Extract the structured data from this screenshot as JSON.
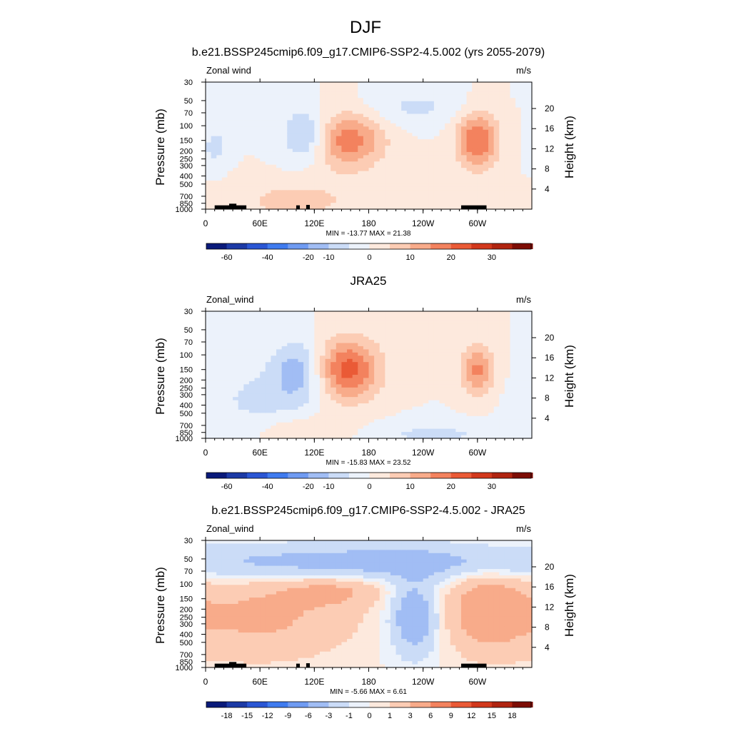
{
  "figure_title": "DJF",
  "colors": {
    "main_palette": [
      "#0a1a7a",
      "#1c3aa6",
      "#2a56d4",
      "#3f7bef",
      "#6f9bf2",
      "#a1bdf4",
      "#cbdcf7",
      "#ecf2fb",
      "#fde9dd",
      "#fcccb4",
      "#f8ab8a",
      "#f3825e",
      "#ea5a36",
      "#d2381c",
      "#b02410",
      "#7d0d05"
    ],
    "diff_palette": [
      "#0a1a7a",
      "#1c3aa6",
      "#2a56d4",
      "#3f7bef",
      "#6f9bf2",
      "#a1bdf4",
      "#cbdcf7",
      "#ecf2fb",
      "#fde9dd",
      "#fcccb4",
      "#f8ab8a",
      "#f3825e",
      "#ea5a36",
      "#d2381c",
      "#b02410",
      "#7d0d05"
    ],
    "topography": "#000000"
  },
  "chart_data": [
    {
      "type": "heatmap",
      "title": "b.e21.BSSP245cmip6.f09_g17.CMIP6-SSP2-4.5.002 (yrs 2055-2079)",
      "left_label": "Zonal wind",
      "units": "m/s",
      "ylabel": "Pressure (mb)",
      "y2label": "Height (km)",
      "x_ticks": [
        "0",
        "60E",
        "120E",
        "180",
        "120W",
        "60W"
      ],
      "y_ticks": [
        "30",
        "50",
        "70",
        "100",
        "150",
        "200",
        "250",
        "300",
        "400",
        "500",
        "700",
        "850",
        "1000"
      ],
      "y2_ticks": [
        "20",
        "16",
        "12",
        "8",
        "4"
      ],
      "stats": "MIN = -13.77  MAX =  21.38",
      "min": -13.77,
      "max": 21.38,
      "colorbar_labels": [
        "-60",
        "-40",
        "-20",
        "-10",
        "0",
        "10",
        "20",
        "30"
      ],
      "colorbar_levels": [
        -70,
        -60,
        -50,
        -40,
        -30,
        -20,
        -10,
        -5,
        0,
        5,
        10,
        15,
        20,
        25,
        30,
        35,
        40
      ],
      "field": [
        {
          "lon": 157,
          "p": 150,
          "amp": 18,
          "slon": 28,
          "sp": 0.55
        },
        {
          "lon": 300,
          "p": 150,
          "amp": 20,
          "slon": 16,
          "sp": 0.55
        },
        {
          "lon": 110,
          "p": 130,
          "amp": -13,
          "slon": 18,
          "sp": 0.5
        },
        {
          "lon": 10,
          "p": 180,
          "amp": -7,
          "slon": 10,
          "sp": 0.4
        },
        {
          "lon": 230,
          "p": 60,
          "amp": -6,
          "slon": 40,
          "sp": 0.35
        },
        {
          "lon": 100,
          "p": 800,
          "amp": 7,
          "slon": 50,
          "sp": 0.4
        }
      ]
    },
    {
      "type": "heatmap",
      "title": "JRA25",
      "left_label": "Zonal_wind",
      "units": "m/s",
      "ylabel": "Pressure (mb)",
      "y2label": "Height (km)",
      "x_ticks": [
        "0",
        "60E",
        "120E",
        "180",
        "120W",
        "60W"
      ],
      "y_ticks": [
        "30",
        "50",
        "70",
        "100",
        "150",
        "200",
        "250",
        "300",
        "400",
        "500",
        "700",
        "850",
        "1000"
      ],
      "y2_ticks": [
        "20",
        "16",
        "12",
        "8",
        "4"
      ],
      "stats": "MIN = -15.83  MAX =  23.52",
      "min": -15.83,
      "max": 23.52,
      "colorbar_labels": [
        "-60",
        "-40",
        "-20",
        "-10",
        "0",
        "10",
        "20",
        "30"
      ],
      "colorbar_levels": [
        -70,
        -60,
        -50,
        -40,
        -30,
        -20,
        -10,
        -5,
        0,
        5,
        10,
        15,
        20,
        25,
        30,
        35,
        40
      ],
      "field": [
        {
          "lon": 155,
          "p": 150,
          "amp": 23,
          "slon": 26,
          "sp": 0.6
        },
        {
          "lon": 300,
          "p": 150,
          "amp": 16,
          "slon": 13,
          "sp": 0.5
        },
        {
          "lon": 105,
          "p": 150,
          "amp": -13,
          "slon": 22,
          "sp": 0.6
        },
        {
          "lon": 60,
          "p": 350,
          "amp": -6,
          "slon": 45,
          "sp": 0.7
        },
        {
          "lon": 250,
          "p": 900,
          "amp": -6,
          "slon": 60,
          "sp": 0.25
        },
        {
          "lon": 110,
          "p": 800,
          "amp": 6,
          "slon": 40,
          "sp": 0.3
        }
      ]
    },
    {
      "type": "heatmap",
      "title": "b.e21.BSSP245cmip6.f09_g17.CMIP6-SSP2-4.5.002 - JRA25",
      "left_label": "Zonal_wind",
      "units": "m/s",
      "ylabel": "Pressure (mb)",
      "y2label": "Height (km)",
      "x_ticks": [
        "0",
        "60E",
        "120E",
        "180",
        "120W",
        "60W"
      ],
      "y_ticks": [
        "30",
        "50",
        "70",
        "100",
        "150",
        "200",
        "250",
        "300",
        "400",
        "500",
        "700",
        "850",
        "1000"
      ],
      "y2_ticks": [
        "20",
        "16",
        "12",
        "8",
        "4"
      ],
      "stats": "MIN =  -5.66  MAX =   6.61",
      "min": -5.66,
      "max": 6.61,
      "colorbar_labels": [
        "-18",
        "-15",
        "-12",
        "-9",
        "-6",
        "-3",
        "-1",
        "0",
        "1",
        "3",
        "6",
        "9",
        "12",
        "15",
        "18"
      ],
      "colorbar_levels": [
        -21,
        -18,
        -15,
        -12,
        -9,
        -6,
        -3,
        -1,
        0,
        1,
        3,
        6,
        9,
        12,
        15,
        18,
        21
      ],
      "field": [
        {
          "lon": 180,
          "p": 55,
          "amp": -4.5,
          "slon": 200,
          "sp": 0.35
        },
        {
          "lon": 60,
          "p": 250,
          "amp": 3.5,
          "slon": 70,
          "sp": 0.8
        },
        {
          "lon": 230,
          "p": 250,
          "amp": -5.5,
          "slon": 18,
          "sp": 0.7
        },
        {
          "lon": 310,
          "p": 200,
          "amp": 4.5,
          "slon": 30,
          "sp": 0.8
        },
        {
          "lon": 140,
          "p": 120,
          "amp": 3,
          "slon": 40,
          "sp": 0.3
        }
      ]
    }
  ],
  "topography_segments": [
    [
      10,
      45,
      900
    ],
    [
      26,
      34,
      860
    ],
    [
      100,
      104,
      900
    ],
    [
      111,
      115,
      890
    ],
    [
      282,
      310,
      900
    ]
  ]
}
